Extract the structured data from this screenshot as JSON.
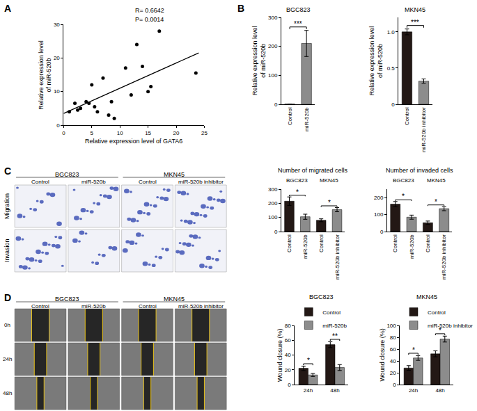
{
  "panel_labels": [
    "A",
    "B",
    "C",
    "D"
  ],
  "chart_data": [
    {
      "type": "scatter",
      "x": [
        1,
        2,
        2.5,
        3,
        4,
        4.5,
        5,
        5.5,
        6,
        7,
        8,
        8.5,
        9,
        11,
        12,
        13,
        14,
        15,
        15.5,
        17,
        23.5
      ],
      "values": [
        4,
        6.5,
        4.5,
        5,
        7,
        6.5,
        12,
        5.5,
        4,
        14,
        3,
        7,
        2,
        17,
        9,
        24,
        17.5,
        10,
        11.5,
        28,
        15.5
      ],
      "color": "#000000",
      "marker": "circle",
      "fit_line": {
        "x": [
          0,
          24
        ],
        "values": [
          3.5,
          21.5
        ]
      },
      "xlabel": "Relative expression level of GATA6",
      "ylabel": "Relative expression level\nof miR-520b",
      "xlim": [
        0,
        25
      ],
      "xticks": [
        0,
        5,
        10,
        15,
        20,
        25
      ],
      "ylim": [
        0,
        30
      ],
      "yticks": [
        0,
        10,
        20,
        30
      ],
      "annotations": [
        "R= 0.6642",
        "P= 0.0014"
      ]
    },
    {
      "type": "bar",
      "title": "BGC823",
      "categories": [
        "Control",
        "miR-520b"
      ],
      "values": [
        1,
        210
      ],
      "errors": [
        0.1,
        45
      ],
      "colors": [
        "#231815",
        "#8c8c8c"
      ],
      "ylabel": "Relative expression level\nof miR-520b",
      "ylim": [
        0,
        300
      ],
      "yticks": [
        0,
        100,
        200,
        300
      ],
      "significance": [
        {
          "pair": [
            0,
            1
          ],
          "label": "***"
        }
      ]
    },
    {
      "type": "bar",
      "title": "MKN45",
      "categories": [
        "Control",
        "miR-520b inhibitor"
      ],
      "values": [
        1,
        0.32
      ],
      "errors": [
        0.04,
        0.03
      ],
      "colors": [
        "#231815",
        "#8c8c8c"
      ],
      "ylabel": "Relative expression level\nof miR-520b",
      "ylim": [
        0,
        1.2
      ],
      "yticks": [
        0,
        0.5,
        {
          "value": 1,
          "label": "1.0"
        }
      ],
      "significance": [
        {
          "pair": [
            0,
            1
          ],
          "label": "***"
        }
      ]
    },
    {
      "type": "bar",
      "title": "Number of migrated cells",
      "group_labels": [
        {
          "text": "BGC823",
          "members": [
            0,
            1
          ]
        },
        {
          "text": "MKN45",
          "members": [
            2,
            3
          ]
        }
      ],
      "categories": [
        "Control",
        "miR-520b",
        "Control",
        "miR-520b inhibitor"
      ],
      "values": [
        215,
        105,
        80,
        155
      ],
      "errors": [
        30,
        18,
        10,
        15
      ],
      "colors": [
        "#231815",
        "#8c8c8c",
        "#231815",
        "#8c8c8c"
      ],
      "ylim": [
        0,
        300
      ],
      "yticks": [
        0,
        100,
        200,
        300
      ],
      "significance": [
        {
          "pair": [
            0,
            1
          ],
          "label": "*"
        },
        {
          "pair": [
            2,
            3
          ],
          "label": "*"
        }
      ]
    },
    {
      "type": "bar",
      "title": "Number of invaded cells",
      "group_labels": [
        {
          "text": "BGC823",
          "members": [
            0,
            1
          ]
        },
        {
          "text": "MKN45",
          "members": [
            2,
            3
          ]
        }
      ],
      "categories": [
        "Control",
        "miR-520b",
        "Control",
        "miR-520b inhibitor"
      ],
      "values": [
        162,
        85,
        52,
        135
      ],
      "errors": [
        15,
        12,
        10,
        12
      ],
      "colors": [
        "#231815",
        "#8c8c8c",
        "#231815",
        "#8c8c8c"
      ],
      "ylim": [
        0,
        250
      ],
      "yticks": [
        0,
        100,
        200
      ],
      "significance": [
        {
          "pair": [
            0,
            1
          ],
          "label": "*"
        },
        {
          "pair": [
            2,
            3
          ],
          "label": "*"
        }
      ]
    },
    {
      "type": "bar",
      "title": "BGC823",
      "categories": [
        "24h",
        "48h"
      ],
      "series": [
        {
          "name": "Control",
          "color": "#231815",
          "values": [
            22,
            54
          ],
          "errors": [
            3,
            4
          ]
        },
        {
          "name": "miR-520b",
          "color": "#8c8c8c",
          "values": [
            13,
            23
          ],
          "errors": [
            2,
            4
          ]
        }
      ],
      "ylabel": "Wound closure (%)",
      "ylim": [
        0,
        80
      ],
      "yticks": [
        0,
        20,
        40,
        60,
        80
      ],
      "legend": "upper left",
      "significance": [
        {
          "category": 0,
          "label": "*"
        },
        {
          "category": 1,
          "label": "**"
        }
      ]
    },
    {
      "type": "bar",
      "title": "MKN45",
      "categories": [
        "24h",
        "48h"
      ],
      "series": [
        {
          "name": "Control",
          "color": "#231815",
          "values": [
            28,
            52
          ],
          "errors": [
            4,
            5
          ]
        },
        {
          "name": "miR-520b inhibitor",
          "color": "#8c8c8c",
          "values": [
            45,
            77
          ],
          "errors": [
            4,
            5
          ]
        }
      ],
      "ylabel": "Wound closure (%)",
      "ylim": [
        0,
        100
      ],
      "yticks": [
        0,
        20,
        40,
        60,
        80,
        100
      ],
      "legend": "upper left",
      "significance": [
        {
          "category": 0,
          "label": "*"
        },
        {
          "category": 1,
          "label": "*"
        }
      ]
    }
  ],
  "image_panels": [
    {
      "group_headers": [
        "BGC823",
        "MKN45"
      ],
      "column_headers": [
        "Control",
        "miR-520b",
        "Control",
        "miR-520b inhibitor"
      ],
      "row_headers": [
        "Migration",
        "Invasion"
      ]
    },
    {
      "group_headers": [
        "BGC823",
        "MKN45"
      ],
      "column_headers": [
        "Control",
        "miR-520b",
        "Control",
        "miR-520b inhibitor"
      ],
      "row_headers": [
        "0h",
        "24h",
        "48h"
      ]
    }
  ]
}
